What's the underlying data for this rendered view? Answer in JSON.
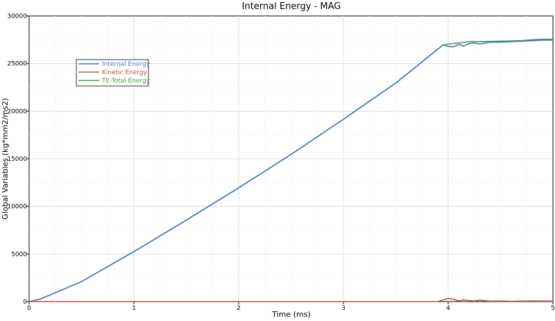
{
  "chart_data": {
    "type": "line",
    "title": "Internal Energy - MAG",
    "xlabel": "Time (ms)",
    "ylabel": "Global Variables (kg*mm2/ms2)",
    "xlim": [
      0,
      5
    ],
    "ylim": [
      0,
      30000
    ],
    "xticks": [
      "0",
      "1",
      "2",
      "3",
      "4",
      "5"
    ],
    "yticks": [
      "0",
      "5000",
      "10000",
      "15000",
      "20000",
      "25000",
      "30000"
    ],
    "grid": true,
    "legend_position": "top-left",
    "series": [
      {
        "name": "Internal Energy",
        "color": "#4a6fc8",
        "x": [
          0,
          0.1,
          0.2,
          0.35,
          0.5,
          1.0,
          1.5,
          2.0,
          2.5,
          3.0,
          3.5,
          3.95,
          4.0,
          4.05,
          4.1,
          4.15,
          4.2,
          4.25,
          4.3,
          4.4,
          4.5,
          4.6,
          4.7,
          4.8,
          4.9,
          5.0
        ],
        "y": [
          0,
          250,
          700,
          1400,
          2100,
          5250,
          8550,
          11950,
          15450,
          19150,
          22950,
          26950,
          26800,
          26750,
          27000,
          26850,
          27100,
          27150,
          27050,
          27250,
          27250,
          27300,
          27350,
          27400,
          27450,
          27450
        ]
      },
      {
        "name": "Kinetic Energy",
        "color": "#c84a44",
        "x": [
          0,
          1,
          2,
          3,
          3.9,
          3.95,
          4.0,
          4.05,
          4.1,
          4.15,
          4.2,
          4.25,
          4.3,
          4.35,
          4.4,
          4.5,
          4.6,
          4.7,
          4.8,
          5.0
        ],
        "y": [
          0,
          0,
          0,
          0,
          0,
          150,
          350,
          250,
          80,
          180,
          100,
          60,
          150,
          90,
          50,
          60,
          40,
          50,
          60,
          50
        ]
      },
      {
        "name": "TE-Total Energy",
        "color": "#4a9a3e",
        "x": [
          0,
          0.1,
          0.2,
          0.35,
          0.5,
          1.0,
          1.5,
          2.0,
          2.5,
          3.0,
          3.5,
          3.95,
          4.0,
          4.1,
          4.2,
          4.3,
          4.5,
          4.7,
          4.8,
          4.9,
          5.0
        ],
        "y": [
          0,
          250,
          700,
          1400,
          2100,
          5250,
          8550,
          11950,
          15450,
          19150,
          22950,
          26950,
          27050,
          27150,
          27300,
          27300,
          27350,
          27400,
          27500,
          27550,
          27550
        ]
      }
    ]
  }
}
